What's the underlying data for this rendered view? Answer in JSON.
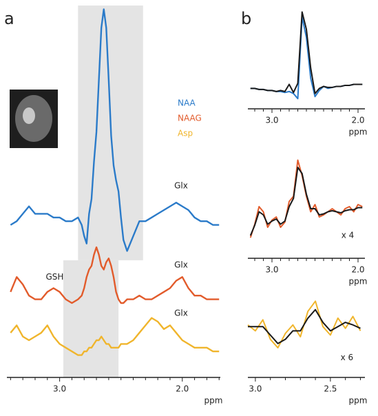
{
  "chart_data": [
    {
      "type": "line",
      "panel_label": "a",
      "xlabel": "ppm",
      "legend": "upper right",
      "xlim": [
        3.43,
        1.69
      ],
      "ylim": [
        0,
        100
      ],
      "xticks": [
        {
          "value": 3,
          "label": "3.0"
        },
        {
          "value": 2,
          "label": "2.0"
        }
      ],
      "minor_xticks": [
        3.4,
        3.3,
        3.2,
        3.1,
        2.9,
        2.8,
        2.7,
        2.6,
        2.5,
        2.4,
        2.3,
        2.2,
        2.1,
        1.9,
        1.8,
        1.7
      ],
      "shaded_regions": [
        {
          "x": [
            2.85,
            2.32
          ],
          "y": [
            31.5,
            100
          ],
          "color": "#e4e4e4"
        },
        {
          "x": [
            2.97,
            2.52
          ],
          "y": [
            0,
            31.5
          ],
          "color": "#e4e4e4"
        }
      ],
      "x": [
        3.4,
        3.35,
        3.3,
        3.25,
        3.2,
        3.15,
        3.1,
        3.05,
        3.0,
        2.95,
        2.9,
        2.85,
        2.82,
        2.8,
        2.78,
        2.76,
        2.74,
        2.72,
        2.7,
        2.68,
        2.66,
        2.64,
        2.62,
        2.6,
        2.58,
        2.56,
        2.54,
        2.52,
        2.5,
        2.48,
        2.45,
        2.4,
        2.35,
        2.3,
        2.25,
        2.2,
        2.15,
        2.1,
        2.05,
        2.0,
        1.95,
        1.9,
        1.85,
        1.8,
        1.75,
        1.7
      ],
      "series": [
        {
          "name": "NAA",
          "color": "#2b7bc9",
          "values": [
            41,
            42,
            44,
            46,
            44,
            44,
            44,
            43,
            43,
            42,
            42,
            43,
            41,
            38,
            36,
            44,
            48,
            58,
            66,
            80,
            94,
            99,
            94,
            80,
            65,
            57,
            53,
            50,
            43,
            37,
            34,
            38,
            42,
            42,
            43,
            44,
            45,
            46,
            47,
            46,
            45,
            43,
            42,
            42,
            41,
            41
          ]
        },
        {
          "name": "NAAG",
          "color": "#e25b2b",
          "values": [
            23,
            27,
            25,
            22,
            21,
            21,
            23,
            24,
            23,
            21,
            20,
            21,
            22,
            24,
            27,
            29,
            30,
            33,
            35,
            33,
            30,
            29,
            31,
            32,
            30,
            27,
            23,
            21,
            20,
            20,
            21,
            21,
            22,
            21,
            21,
            22,
            23,
            24,
            26,
            27,
            24,
            22,
            22,
            21,
            21,
            21
          ]
        },
        {
          "name": "Asp",
          "color": "#f0b52c",
          "values": [
            12,
            14,
            11,
            10,
            11,
            12,
            14,
            11,
            9,
            8,
            7,
            6,
            6,
            7,
            7,
            8,
            8,
            9,
            10,
            10,
            11,
            10,
            9,
            9,
            8,
            8,
            8,
            8,
            9,
            9,
            9,
            10,
            12,
            14,
            16,
            15,
            13,
            14,
            12,
            10,
            9,
            8,
            8,
            8,
            7,
            7
          ]
        }
      ],
      "annotations": [
        {
          "text": "Glx",
          "x": 2.01,
          "y": 51.5
        },
        {
          "text": "Glx",
          "x": 2.01,
          "y": 30.2
        },
        {
          "text": "Glx",
          "x": 2.01,
          "y": 17.2
        },
        {
          "text": "GSH",
          "x": 3.04,
          "y": 26.9
        }
      ]
    },
    {
      "type": "line",
      "panel_label": "b",
      "xlabel": "ppm",
      "xlim": [
        3.28,
        1.92
      ],
      "ylim": [
        0,
        100
      ],
      "xticks": [
        {
          "value": 3,
          "label": "3.0"
        },
        {
          "value": 2,
          "label": "2.0"
        }
      ],
      "minor_xticks": [
        3.2,
        3.1,
        2.9,
        2.8,
        2.7,
        2.6,
        2.5,
        2.4,
        2.3,
        2.2,
        2.1
      ],
      "x": [
        3.25,
        3.2,
        3.15,
        3.1,
        3.05,
        3.0,
        2.95,
        2.9,
        2.85,
        2.8,
        2.75,
        2.7,
        2.65,
        2.6,
        2.55,
        2.5,
        2.45,
        2.4,
        2.35,
        2.3,
        2.25,
        2.2,
        2.15,
        2.1,
        2.05,
        2.0,
        1.95
      ],
      "series": [
        {
          "color": "#2b7bc9",
          "values": [
            20,
            20,
            19,
            19,
            18,
            18,
            17,
            17,
            16,
            17,
            15,
            10,
            90,
            70,
            30,
            12,
            18,
            22,
            20,
            21,
            22,
            22,
            23,
            23,
            24,
            24,
            24
          ]
        },
        {
          "color": "#1a1a1a",
          "values": [
            20,
            20,
            19,
            19,
            18,
            18,
            17,
            18,
            17,
            24,
            16,
            25,
            95,
            78,
            40,
            15,
            20,
            22,
            21,
            21,
            22,
            22,
            23,
            23,
            24,
            24,
            24
          ]
        }
      ]
    },
    {
      "type": "line",
      "xlabel": "ppm",
      "xlim": [
        3.28,
        1.92
      ],
      "ylim": [
        0,
        100
      ],
      "xticks": [
        {
          "value": 3,
          "label": "3.0"
        },
        {
          "value": 2,
          "label": "2.0"
        }
      ],
      "minor_xticks": [
        3.2,
        3.1,
        2.9,
        2.8,
        2.7,
        2.6,
        2.5,
        2.4,
        2.3,
        2.2,
        2.1
      ],
      "x": [
        3.25,
        3.2,
        3.15,
        3.1,
        3.05,
        3.0,
        2.95,
        2.9,
        2.85,
        2.8,
        2.75,
        2.7,
        2.65,
        2.6,
        2.55,
        2.5,
        2.45,
        2.4,
        2.35,
        2.3,
        2.25,
        2.2,
        2.15,
        2.1,
        2.05,
        2.0,
        1.95
      ],
      "series": [
        {
          "color": "#e25b2b",
          "values": [
            20,
            33,
            50,
            45,
            30,
            37,
            40,
            30,
            35,
            55,
            60,
            95,
            80,
            60,
            45,
            52,
            40,
            42,
            45,
            48,
            45,
            42,
            48,
            50,
            45,
            52,
            50
          ]
        },
        {
          "color": "#1a1a1a",
          "values": [
            22,
            32,
            45,
            42,
            33,
            36,
            38,
            33,
            36,
            50,
            58,
            88,
            82,
            62,
            48,
            48,
            42,
            43,
            45,
            46,
            45,
            44,
            46,
            47,
            47,
            49,
            49
          ]
        }
      ],
      "annotations": [
        {
          "text": "x 4",
          "x": 2.12,
          "y": 22
        }
      ]
    },
    {
      "type": "line",
      "xlabel": "ppm",
      "xlim": [
        3.05,
        2.27
      ],
      "ylim": [
        0,
        100
      ],
      "xticks": [
        {
          "value": 3,
          "label": "3.0"
        },
        {
          "value": 2.5,
          "label": "2.5"
        }
      ],
      "minor_xticks": [
        2.9,
        2.8,
        2.7,
        2.6,
        2.4,
        2.3
      ],
      "x": [
        3.05,
        3.0,
        2.95,
        2.9,
        2.85,
        2.8,
        2.75,
        2.7,
        2.65,
        2.6,
        2.55,
        2.5,
        2.45,
        2.4,
        2.35,
        2.3
      ],
      "series": [
        {
          "color": "#f0b52c",
          "values": [
            62,
            55,
            68,
            45,
            35,
            52,
            62,
            48,
            78,
            90,
            60,
            50,
            70,
            58,
            72,
            55
          ]
        },
        {
          "color": "#1a1a1a",
          "values": [
            60,
            60,
            60,
            50,
            40,
            45,
            55,
            55,
            70,
            80,
            65,
            55,
            60,
            65,
            62,
            58
          ]
        }
      ],
      "annotations": [
        {
          "text": "x 6",
          "x": 2.39,
          "y": 23
        }
      ]
    }
  ]
}
